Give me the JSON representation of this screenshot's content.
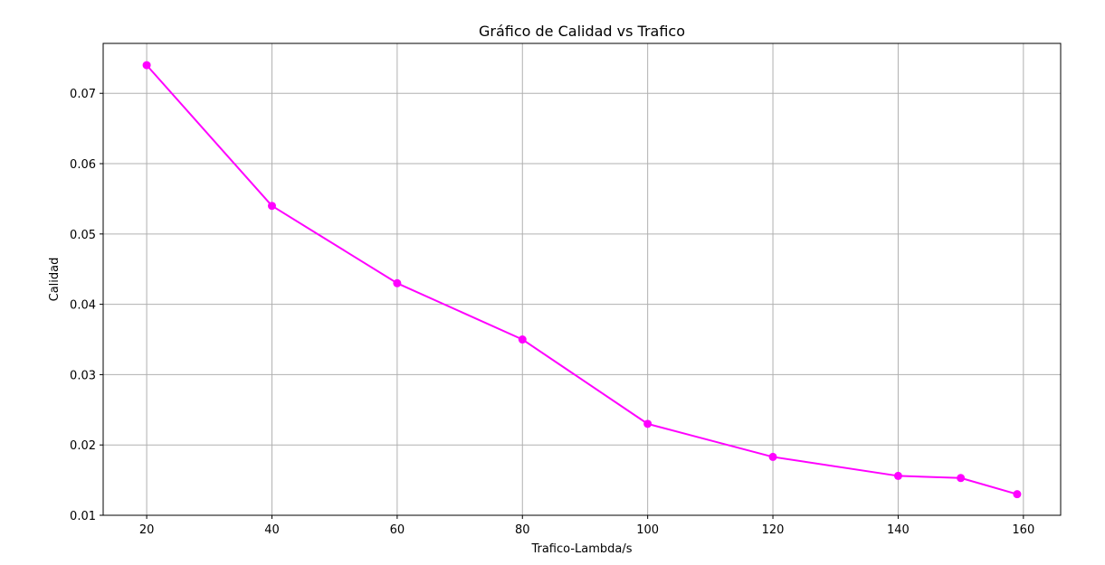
{
  "chart_data": {
    "type": "line",
    "title": "Gráfico de Calidad vs Trafico",
    "xlabel": "Trafico-Lambda/s",
    "ylabel": "Calidad",
    "x": [
      20,
      40,
      60,
      80,
      100,
      120,
      140,
      150,
      159
    ],
    "series": [
      {
        "values": [
          0.074,
          0.054,
          0.043,
          0.035,
          0.023,
          0.0183,
          0.0156,
          0.0153,
          0.013
        ],
        "color": "#ff00ff",
        "marker": "circle"
      }
    ],
    "xlim": [
      13.05,
      165.95
    ],
    "ylim": [
      0.01,
      0.0771
    ],
    "xticks": [
      20,
      40,
      60,
      80,
      100,
      120,
      140,
      160
    ],
    "xtick_labels": [
      "20",
      "40",
      "60",
      "80",
      "100",
      "120",
      "140",
      "160"
    ],
    "yticks": [
      0.01,
      0.02,
      0.03,
      0.04,
      0.05,
      0.06,
      0.07
    ],
    "ytick_labels": [
      "0.01",
      "0.02",
      "0.03",
      "0.04",
      "0.05",
      "0.06",
      "0.07"
    ],
    "grid": true,
    "grid_color": "#b0b0b0",
    "axis_color": "#000000"
  }
}
